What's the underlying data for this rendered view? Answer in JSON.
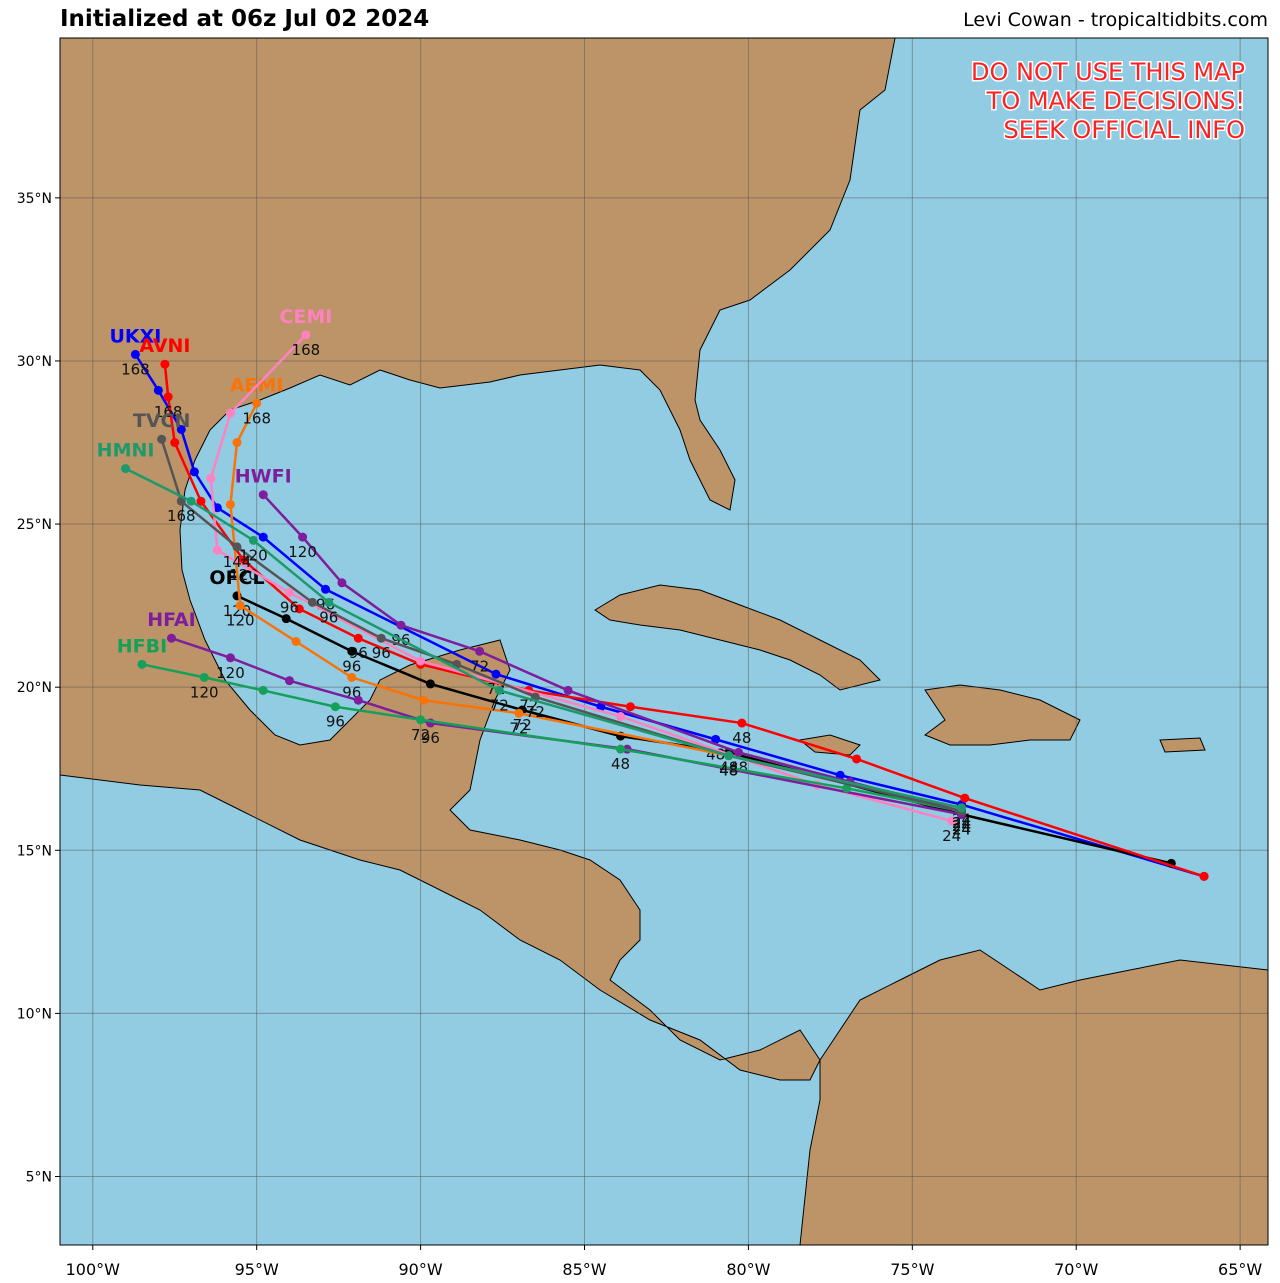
{
  "header": {
    "title": "Initialized at 06z Jul 02 2024",
    "credit": "Levi Cowan - tropicaltidbits.com"
  },
  "warning": [
    "DO NOT USE THIS MAP",
    "TO MAKE DECISIONS!",
    "SEEK OFFICIAL INFO"
  ],
  "map": {
    "xlim": [
      -101,
      -64.15
    ],
    "ylim": [
      2.9,
      39.9
    ],
    "xticks": [
      {
        "value": -100,
        "label": "100°W"
      },
      {
        "value": -95,
        "label": "95°W"
      },
      {
        "value": -90,
        "label": "90°W"
      },
      {
        "value": -85,
        "label": "85°W"
      },
      {
        "value": -80,
        "label": "80°W"
      },
      {
        "value": -75,
        "label": "75°W"
      },
      {
        "value": -70,
        "label": "70°W"
      },
      {
        "value": -65,
        "label": "65°W"
      }
    ],
    "yticks": [
      {
        "value": 5,
        "label": "5°N"
      },
      {
        "value": 10,
        "label": "10°N"
      },
      {
        "value": 15,
        "label": "15°N"
      },
      {
        "value": 20,
        "label": "20°N"
      },
      {
        "value": 25,
        "label": "25°N"
      },
      {
        "value": 30,
        "label": "30°N"
      },
      {
        "value": 35,
        "label": "35°N"
      }
    ],
    "grid": true,
    "tracks": [
      {
        "name": "UKXI",
        "color": "#0000ff",
        "lon": [
          -66.1,
          -73.5,
          -77.2,
          -81.0,
          -84.5,
          -87.7,
          -92.9,
          -94.8,
          -96.2,
          -96.9,
          -97.3,
          -98.0,
          -98.7
        ],
        "lat": [
          14.2,
          16.4,
          17.3,
          18.4,
          19.4,
          20.4,
          23.0,
          24.6,
          25.5,
          26.6,
          27.9,
          29.1,
          30.2
        ],
        "hours": [
          null,
          24,
          null,
          48,
          null,
          72,
          96,
          null,
          null,
          null,
          null,
          null,
          168
        ]
      },
      {
        "name": "OFCL",
        "color": "#000000",
        "lon": [
          -67.1,
          -73.5,
          -80.6,
          -83.9,
          -86.9,
          -89.7,
          -92.1,
          -94.1,
          -95.6
        ],
        "lat": [
          14.6,
          16.1,
          18.0,
          18.5,
          19.3,
          20.1,
          21.1,
          22.1,
          22.8
        ],
        "hours": [
          null,
          24,
          48,
          null,
          72,
          null,
          96,
          null,
          120
        ]
      },
      {
        "name": "AVNI",
        "color": "#ff0000",
        "lon": [
          -66.1,
          -73.4,
          -76.7,
          -80.2,
          -83.6,
          -86.7,
          -90.0,
          -91.9,
          -93.7,
          -95.4,
          -96.7,
          -97.5,
          -97.7,
          -97.8
        ],
        "lat": [
          14.2,
          16.6,
          17.8,
          18.9,
          19.4,
          19.9,
          20.7,
          21.5,
          22.4,
          23.9,
          25.7,
          27.5,
          28.9,
          29.9
        ],
        "hours": [
          null,
          null,
          null,
          48,
          null,
          72,
          null,
          96,
          null,
          120,
          null,
          null,
          168,
          null
        ]
      },
      {
        "name": "AEMI",
        "color": "#f97306",
        "lon": [
          -73.5,
          -80.6,
          -87.0,
          -89.9,
          -92.1,
          -93.8,
          -95.5,
          -95.8,
          -95.6,
          -95.0
        ],
        "lat": [
          16.3,
          17.9,
          19.2,
          19.6,
          20.3,
          21.4,
          22.5,
          25.6,
          27.5,
          28.7
        ],
        "hours": [
          24,
          48,
          72,
          null,
          96,
          null,
          120,
          null,
          null,
          168
        ]
      },
      {
        "name": "CEMI",
        "color": "#ff81c0",
        "lon": [
          -73.8,
          -77.9,
          -83.9,
          -90.0,
          -94.0,
          -96.2,
          -96.4,
          -95.8,
          -93.5
        ],
        "lat": [
          15.9,
          17.0,
          19.1,
          20.8,
          22.9,
          24.2,
          26.4,
          28.4,
          30.8
        ],
        "hours": [
          24,
          null,
          null,
          null,
          96,
          null,
          null,
          null,
          168
        ]
      },
      {
        "name": "HWFI",
        "color": "#7e1e9c",
        "lon": [
          -73.5,
          -76.9,
          -80.3,
          -85.5,
          -88.2,
          -90.6,
          -92.4,
          -93.6,
          -94.8
        ],
        "lat": [
          16.2,
          17.1,
          18.0,
          19.9,
          21.1,
          21.9,
          23.2,
          24.6,
          25.9
        ],
        "hours": [
          24,
          null,
          48,
          null,
          72,
          96,
          null,
          120,
          null
        ]
      },
      {
        "name": "HFAI",
        "color": "#7e1e9c",
        "lon": [
          -73.5,
          -83.7,
          -89.7,
          -91.9,
          -94.0,
          -95.8,
          -97.6
        ],
        "lat": [
          16.1,
          18.1,
          18.9,
          19.6,
          20.2,
          20.9,
          21.5
        ],
        "hours": [
          24,
          null,
          96,
          null,
          null,
          120,
          null
        ]
      },
      {
        "name": "HFBI",
        "color": "#15a05a",
        "lon": [
          -73.5,
          -77.0,
          -83.9,
          -90.0,
          -92.6,
          -94.8,
          -96.6,
          -98.5
        ],
        "lat": [
          16.2,
          16.9,
          18.1,
          19.0,
          19.4,
          19.9,
          20.3,
          20.7
        ],
        "hours": [
          24,
          null,
          48,
          72,
          96,
          null,
          120,
          null
        ]
      },
      {
        "name": "TVCN",
        "color": "#555555",
        "lon": [
          -73.5,
          -80.6,
          -86.5,
          -88.9,
          -91.2,
          -93.3,
          -95.6,
          -97.3,
          -97.9
        ],
        "lat": [
          16.2,
          17.9,
          19.7,
          20.7,
          21.5,
          22.6,
          24.3,
          25.7,
          27.6
        ],
        "hours": [
          24,
          48,
          72,
          null,
          96,
          null,
          144,
          168,
          null
        ]
      },
      {
        "name": "HMNI",
        "color": "#1d9a6c",
        "lon": [
          -73.5,
          -80.6,
          -87.6,
          -92.8,
          -95.1,
          -97.0,
          -99.0
        ],
        "lat": [
          16.3,
          17.9,
          19.9,
          22.6,
          24.5,
          25.7,
          26.7
        ],
        "hours": [
          24,
          48,
          72,
          96,
          120,
          null,
          null
        ]
      }
    ]
  }
}
